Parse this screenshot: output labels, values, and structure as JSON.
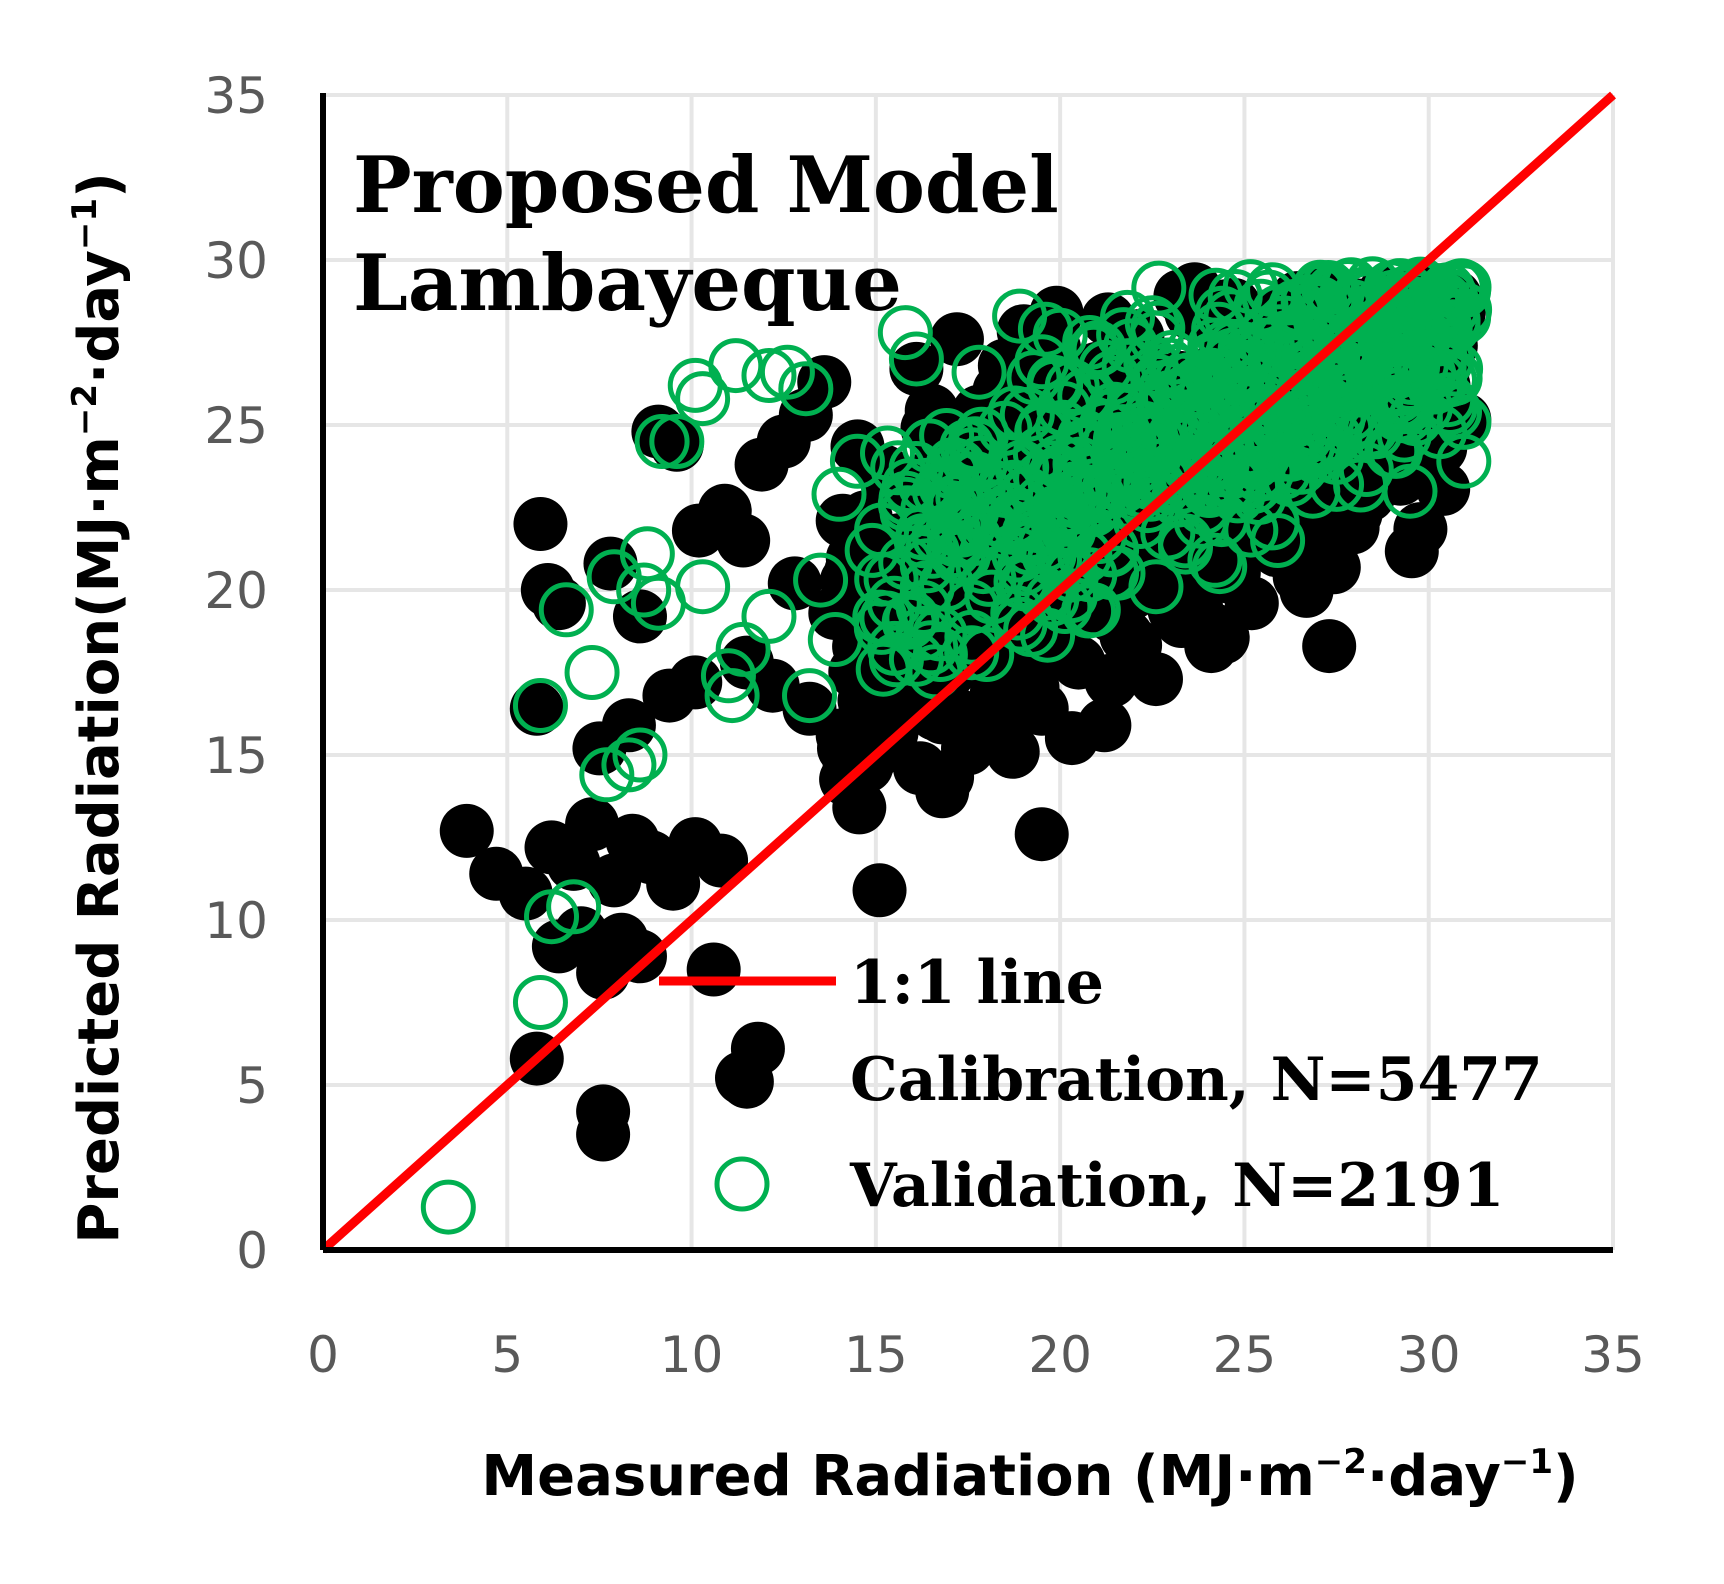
{
  "chart_data": {
    "type": "scatter",
    "title_lines": [
      "Proposed Model",
      "Lambayeque"
    ],
    "xlabel": {
      "main": "Measured Radiation (MJ·m",
      "sup1": "−2",
      "mid": "·day",
      "sup2": "−1",
      "end": ")"
    },
    "ylabel": {
      "main": "Predicted Radiation(MJ·m",
      "sup1": "−2",
      "mid": "·day",
      "sup2": "−1",
      "end": ")"
    },
    "xlim": [
      0,
      35
    ],
    "ylim": [
      0,
      35
    ],
    "xticks": [
      "0",
      "5",
      "10",
      "15",
      "20",
      "25",
      "30",
      "35"
    ],
    "yticks": [
      "0",
      "5",
      "10",
      "15",
      "20",
      "25",
      "30",
      "35"
    ],
    "grid": true,
    "legend_position": "bottom-right",
    "colors": {
      "identity_line": "#ff0000",
      "calibration": "#000000",
      "validation": "#00b050",
      "grid": "#e6e6e6",
      "axis": "#000000"
    },
    "series": [
      {
        "name": "1:1 line",
        "kind": "line",
        "points": [
          [
            0,
            0
          ],
          [
            35,
            35
          ]
        ]
      },
      {
        "name": "Calibration, N=5477",
        "kind": "filled-marker",
        "count": 5477,
        "cluster": {
          "x_range": [
            14,
            31
          ],
          "center": [
            22,
            23
          ],
          "slope": 0.55,
          "spread_y": 2.6
        },
        "points": [
          [
            3.9,
            12.7
          ],
          [
            4.7,
            11.4
          ],
          [
            5.5,
            10.8
          ],
          [
            6.2,
            12.2
          ],
          [
            6.8,
            11.7
          ],
          [
            7.3,
            12.9
          ],
          [
            7.9,
            11.2
          ],
          [
            8.4,
            12.4
          ],
          [
            8.9,
            11.9
          ],
          [
            9.5,
            11.1
          ],
          [
            10.1,
            12.3
          ],
          [
            10.8,
            11.8
          ],
          [
            6.4,
            9.2
          ],
          [
            7.0,
            9.6
          ],
          [
            7.6,
            8.4
          ],
          [
            8.1,
            9.4
          ],
          [
            8.6,
            8.9
          ],
          [
            5.9,
            22.0
          ],
          [
            5.8,
            16.4
          ],
          [
            6.4,
            19.6
          ],
          [
            6.1,
            20.0
          ],
          [
            7.8,
            20.8
          ],
          [
            8.6,
            19.2
          ],
          [
            9.1,
            24.8
          ],
          [
            9.6,
            24.4
          ],
          [
            10.2,
            21.8
          ],
          [
            10.9,
            22.4
          ],
          [
            11.4,
            21.5
          ],
          [
            11.9,
            23.8
          ],
          [
            12.5,
            24.5
          ],
          [
            13.1,
            25.3
          ],
          [
            13.6,
            26.3
          ],
          [
            12.8,
            20.2
          ],
          [
            13.9,
            19.3
          ],
          [
            7.5,
            15.2
          ],
          [
            8.3,
            15.9
          ],
          [
            9.4,
            16.8
          ],
          [
            10.1,
            17.2
          ],
          [
            11.5,
            17.8
          ],
          [
            12.2,
            17.1
          ],
          [
            13.2,
            16.4
          ],
          [
            14.1,
            15.6
          ],
          [
            15.0,
            15.1
          ],
          [
            16.2,
            14.6
          ],
          [
            16.8,
            13.9
          ],
          [
            17.5,
            15.2
          ],
          [
            18.4,
            15.9
          ],
          [
            19.5,
            16.4
          ],
          [
            21.2,
            15.9
          ],
          [
            22.6,
            17.3
          ],
          [
            24.1,
            18.3
          ],
          [
            25.2,
            19.6
          ],
          [
            26.5,
            20.4
          ],
          [
            27.3,
            18.3
          ],
          [
            19.5,
            12.6
          ],
          [
            15.1,
            10.9
          ],
          [
            10.6,
            8.5
          ],
          [
            11.8,
            6.1
          ],
          [
            11.5,
            5.1
          ],
          [
            7.6,
            4.2
          ],
          [
            7.6,
            3.5
          ],
          [
            5.8,
            5.8
          ],
          [
            18.5,
            26.8
          ],
          [
            19.9,
            28.4
          ],
          [
            17.2,
            27.6
          ],
          [
            16.1,
            26.7
          ],
          [
            21.3,
            28.2
          ],
          [
            24.5,
            28.6
          ],
          [
            27.2,
            29.0
          ],
          [
            28.8,
            29.0
          ],
          [
            29.9,
            28.2
          ],
          [
            30.6,
            27.4
          ],
          [
            30.4,
            26.2
          ],
          [
            29.5,
            25.5
          ],
          [
            28.2,
            23.9
          ],
          [
            27.1,
            22.8
          ],
          [
            25.9,
            21.2
          ],
          [
            24.6,
            20.4
          ],
          [
            23.1,
            19.4
          ],
          [
            21.8,
            18.6
          ],
          [
            20.5,
            17.8
          ],
          [
            19.2,
            17.4
          ],
          [
            18.1,
            18.6
          ],
          [
            16.9,
            17.9
          ],
          [
            15.7,
            18.4
          ],
          [
            14.8,
            20.8
          ],
          [
            14.1,
            22.1
          ],
          [
            15.2,
            23.6
          ],
          [
            16.4,
            24.9
          ],
          [
            17.8,
            25.4
          ],
          [
            19.1,
            24.1
          ],
          [
            20.6,
            23.2
          ],
          [
            22.2,
            24.4
          ],
          [
            23.8,
            25.6
          ],
          [
            25.4,
            26.4
          ],
          [
            26.8,
            27.2
          ]
        ]
      },
      {
        "name": "Validation, N=2191",
        "kind": "hollow-marker",
        "count": 2191,
        "cluster": {
          "x_range": [
            15,
            31
          ],
          "center": [
            22,
            24
          ],
          "slope": 0.5,
          "spread_y": 2.4
        },
        "points": [
          [
            3.4,
            1.3
          ],
          [
            5.9,
            7.5
          ],
          [
            6.2,
            10.1
          ],
          [
            6.8,
            10.4
          ],
          [
            7.7,
            14.4
          ],
          [
            8.3,
            14.7
          ],
          [
            8.6,
            15.0
          ],
          [
            5.9,
            16.5
          ],
          [
            7.3,
            17.5
          ],
          [
            6.6,
            19.4
          ],
          [
            7.9,
            20.4
          ],
          [
            8.8,
            21.1
          ],
          [
            8.7,
            20.0
          ],
          [
            9.1,
            19.6
          ],
          [
            10.3,
            20.1
          ],
          [
            11.0,
            17.4
          ],
          [
            11.1,
            16.8
          ],
          [
            11.4,
            18.2
          ],
          [
            12.1,
            19.2
          ],
          [
            13.2,
            16.8
          ],
          [
            13.5,
            20.3
          ],
          [
            13.9,
            18.5
          ],
          [
            15.2,
            17.6
          ],
          [
            9.2,
            24.5
          ],
          [
            9.6,
            24.5
          ],
          [
            10.1,
            26.2
          ],
          [
            10.3,
            25.8
          ],
          [
            11.2,
            26.8
          ],
          [
            12.1,
            26.5
          ],
          [
            12.6,
            26.6
          ],
          [
            13.1,
            26.1
          ],
          [
            14.0,
            22.9
          ],
          [
            14.5,
            23.9
          ],
          [
            15.8,
            27.8
          ],
          [
            16.1,
            27.0
          ],
          [
            17.8,
            26.6
          ],
          [
            18.9,
            28.3
          ],
          [
            19.6,
            27.9
          ],
          [
            20.8,
            27.5
          ],
          [
            22.5,
            28.1
          ],
          [
            24.3,
            27.9
          ],
          [
            26.4,
            28.6
          ],
          [
            28.2,
            28.9
          ],
          [
            29.6,
            28.2
          ],
          [
            30.3,
            27.1
          ],
          [
            30.7,
            25.4
          ],
          [
            29.1,
            24.2
          ],
          [
            27.5,
            23.2
          ],
          [
            25.9,
            21.5
          ],
          [
            24.2,
            20.9
          ],
          [
            22.6,
            20.1
          ],
          [
            20.9,
            19.4
          ],
          [
            19.2,
            18.8
          ],
          [
            17.6,
            18.1
          ],
          [
            16.1,
            17.9
          ],
          [
            15.5,
            19.6
          ],
          [
            14.9,
            21.2
          ],
          [
            15.8,
            22.6
          ],
          [
            17.1,
            23.8
          ],
          [
            18.5,
            24.9
          ],
          [
            20.1,
            25.5
          ],
          [
            21.7,
            24.8
          ],
          [
            23.3,
            25.9
          ],
          [
            24.9,
            26.7
          ],
          [
            26.6,
            27.1
          ],
          [
            28.0,
            27.5
          ]
        ]
      }
    ]
  }
}
